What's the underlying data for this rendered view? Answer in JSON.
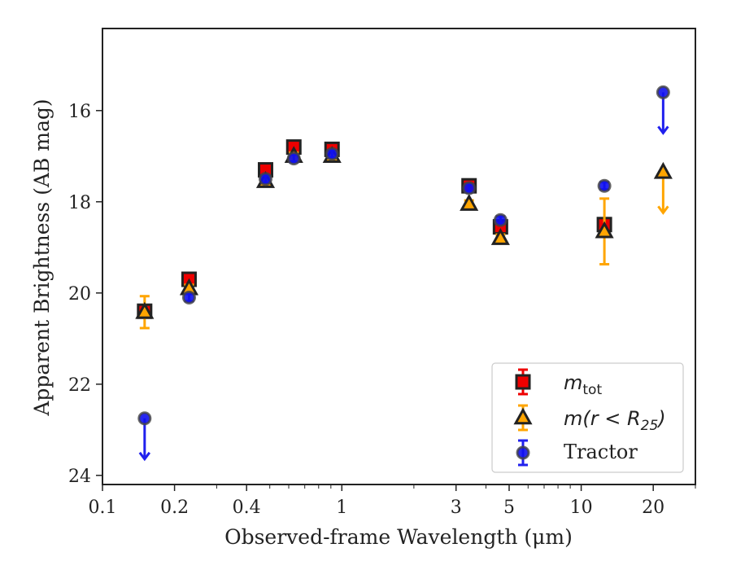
{
  "chart_data": {
    "type": "scatter",
    "xlabel": "Observed-frame Wavelength (μm)",
    "ylabel": "Apparent Brightness (AB mag)",
    "xscale": "log",
    "xlim": [
      0.1,
      30
    ],
    "ylim": [
      24.2,
      14.2
    ],
    "y_inverted": true,
    "x_ticks": [
      {
        "value": 0.1,
        "label": "0.1"
      },
      {
        "value": 0.2,
        "label": "0.2"
      },
      {
        "value": 0.4,
        "label": "0.4"
      },
      {
        "value": 1,
        "label": "1"
      },
      {
        "value": 3,
        "label": "3"
      },
      {
        "value": 5,
        "label": "5"
      },
      {
        "value": 10,
        "label": "10"
      },
      {
        "value": 20,
        "label": "20"
      }
    ],
    "y_ticks": [
      {
        "value": 16,
        "label": "16"
      },
      {
        "value": 18,
        "label": "18"
      },
      {
        "value": 20,
        "label": "20"
      },
      {
        "value": 22,
        "label": "22"
      },
      {
        "value": 24,
        "label": "24"
      }
    ],
    "legend_position": "lower-right",
    "series": [
      {
        "name": "m_tot",
        "legend_label": "m_tot",
        "marker": "square",
        "color": "#ee0000",
        "errcolor": "#ee0000",
        "points": [
          {
            "x": 0.15,
            "y": 20.4,
            "yerr": 0.05
          },
          {
            "x": 0.23,
            "y": 19.7,
            "yerr": 0.05
          },
          {
            "x": 0.48,
            "y": 17.3,
            "yerr": 0.05
          },
          {
            "x": 0.63,
            "y": 16.8,
            "yerr": 0.05
          },
          {
            "x": 0.91,
            "y": 16.85,
            "yerr": 0.05
          },
          {
            "x": 3.4,
            "y": 17.65,
            "yerr": 0.05
          },
          {
            "x": 4.6,
            "y": 18.55,
            "yerr": 0.05
          },
          {
            "x": 12.5,
            "y": 18.5,
            "yerr": 0.05
          }
        ]
      },
      {
        "name": "m(r<R25)",
        "legend_label": "m(r < R25)",
        "marker": "triangle",
        "color": "#ffa500",
        "errcolor": "#ffa500",
        "points": [
          {
            "x": 0.15,
            "y": 20.42,
            "yerr": 0.35
          },
          {
            "x": 0.23,
            "y": 19.9,
            "yerr": 0.05
          },
          {
            "x": 0.48,
            "y": 17.55,
            "yerr": 0.05
          },
          {
            "x": 0.63,
            "y": 17.0,
            "yerr": 0.05
          },
          {
            "x": 0.91,
            "y": 17.0,
            "yerr": 0.05
          },
          {
            "x": 3.4,
            "y": 18.05,
            "yerr": 0.05
          },
          {
            "x": 4.6,
            "y": 18.8,
            "yerr": 0.05
          },
          {
            "x": 12.5,
            "y": 18.65,
            "yerr": 0.72
          },
          {
            "x": 22.0,
            "y": 17.35,
            "upper_limit": true
          }
        ]
      },
      {
        "name": "Tractor",
        "legend_label": "Tractor",
        "marker": "circle",
        "color": "#1010ee",
        "errcolor": "#2020ee",
        "points": [
          {
            "x": 0.15,
            "y": 22.75,
            "upper_limit": true
          },
          {
            "x": 0.23,
            "y": 20.1,
            "yerr": 0.05
          },
          {
            "x": 0.48,
            "y": 17.5,
            "yerr": 0.05
          },
          {
            "x": 0.63,
            "y": 17.05,
            "yerr": 0.05
          },
          {
            "x": 0.91,
            "y": 16.95,
            "yerr": 0.05
          },
          {
            "x": 3.4,
            "y": 17.7,
            "yerr": 0.05
          },
          {
            "x": 4.6,
            "y": 18.4,
            "yerr": 0.05
          },
          {
            "x": 12.5,
            "y": 17.65,
            "yerr": 0.05
          },
          {
            "x": 22.0,
            "y": 15.6,
            "upper_limit": true
          }
        ]
      }
    ]
  }
}
